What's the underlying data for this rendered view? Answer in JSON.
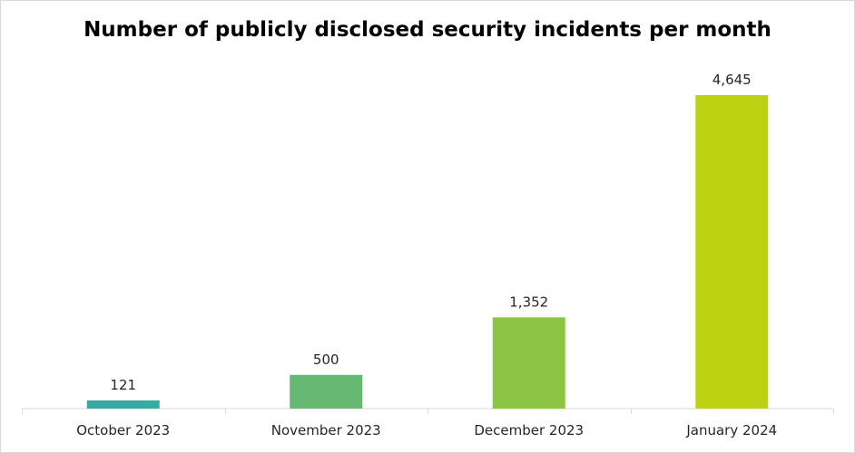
{
  "chart_data": {
    "type": "bar",
    "title": "Number of publicly disclosed security incidents per month",
    "categories": [
      "October 2023",
      "November 2023",
      "December 2023",
      "January 2024"
    ],
    "values": [
      121,
      500,
      1352,
      4645
    ],
    "value_labels": [
      "121",
      "500",
      "1,352",
      "4,645"
    ],
    "colors": [
      "#3ba9a2",
      "#66b872",
      "#8cc443",
      "#bcd212"
    ],
    "axis_color": "#d9d9d9",
    "xlabel": "",
    "ylabel": "",
    "ylim": [
      0,
      4645
    ],
    "grid": false,
    "legend": "none"
  }
}
